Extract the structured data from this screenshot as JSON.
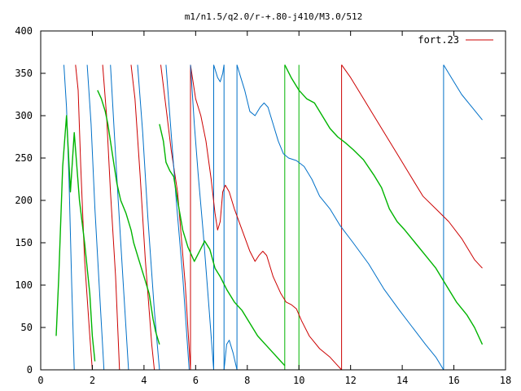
{
  "chart_data": {
    "type": "line",
    "title": "m1/n1.5/q2.0/r-+.80-j410/M3.0/512",
    "xlabel": "",
    "ylabel": "",
    "xlim": [
      0,
      18
    ],
    "ylim": [
      0,
      400
    ],
    "x_ticks": [
      0,
      2,
      4,
      6,
      8,
      10,
      12,
      14,
      16,
      18
    ],
    "y_ticks": [
      0,
      50,
      100,
      150,
      200,
      250,
      300,
      350,
      400
    ],
    "x_tick_labels": [
      "0",
      "2",
      "4",
      "6",
      "8",
      "10",
      "12",
      "14",
      "16",
      "18"
    ],
    "y_tick_labels": [
      "0",
      "50",
      "100",
      "150",
      "200",
      "250",
      "300",
      "350",
      "400"
    ],
    "legend_position": "top-right",
    "grid": false,
    "series": [
      {
        "name": "fort.23",
        "color": "#cc0000",
        "segments": [
          [
            [
              1.35,
              360
            ],
            [
              1.45,
              330
            ],
            [
              1.55,
              240
            ],
            [
              1.7,
              130
            ],
            [
              1.9,
              40
            ],
            [
              2.0,
              0
            ]
          ],
          [
            [
              2.4,
              360
            ],
            [
              2.55,
              300
            ],
            [
              2.7,
              210
            ],
            [
              2.9,
              110
            ],
            [
              3.05,
              0
            ]
          ],
          [
            [
              3.5,
              360
            ],
            [
              3.65,
              320
            ],
            [
              3.85,
              230
            ],
            [
              4.05,
              130
            ],
            [
              4.3,
              30
            ],
            [
              4.4,
              0
            ]
          ],
          [
            [
              4.65,
              360
            ],
            [
              4.85,
              310
            ],
            [
              5.05,
              260
            ],
            [
              5.3,
              210
            ],
            [
              5.6,
              100
            ],
            [
              5.8,
              0
            ]
          ],
          [
            [
              5.8,
              360
            ],
            [
              6.0,
              320
            ],
            [
              6.2,
              300
            ],
            [
              6.4,
              270
            ],
            [
              6.6,
              225
            ],
            [
              6.75,
              185
            ],
            [
              6.85,
              165
            ],
            [
              6.95,
              175
            ],
            [
              7.05,
              210
            ],
            [
              7.15,
              218
            ],
            [
              7.3,
              210
            ],
            [
              7.5,
              190
            ],
            [
              7.8,
              165
            ],
            [
              8.1,
              140
            ],
            [
              8.3,
              128
            ],
            [
              8.45,
              135
            ],
            [
              8.6,
              140
            ],
            [
              8.75,
              135
            ],
            [
              9.0,
              110
            ],
            [
              9.3,
              90
            ],
            [
              9.5,
              80
            ],
            [
              9.7,
              77
            ],
            [
              9.9,
              72
            ],
            [
              10.1,
              58
            ],
            [
              10.4,
              40
            ],
            [
              10.8,
              25
            ],
            [
              11.2,
              15
            ],
            [
              11.5,
              5
            ],
            [
              11.65,
              0
            ]
          ],
          [
            [
              11.65,
              360
            ],
            [
              12.0,
              345
            ],
            [
              12.4,
              325
            ],
            [
              12.9,
              300
            ],
            [
              13.4,
              275
            ],
            [
              13.8,
              255
            ],
            [
              14.3,
              230
            ],
            [
              14.8,
              205
            ],
            [
              15.3,
              190
            ],
            [
              15.8,
              175
            ],
            [
              16.3,
              155
            ],
            [
              16.8,
              130
            ],
            [
              17.1,
              120
            ]
          ]
        ]
      },
      {
        "name": "",
        "color": "#0070c8",
        "segments": [
          [
            [
              0.9,
              360
            ],
            [
              1.0,
              310
            ],
            [
              1.1,
              220
            ],
            [
              1.2,
              100
            ],
            [
              1.3,
              0
            ]
          ],
          [
            [
              1.8,
              360
            ],
            [
              1.95,
              290
            ],
            [
              2.1,
              190
            ],
            [
              2.3,
              80
            ],
            [
              2.45,
              0
            ]
          ],
          [
            [
              2.7,
              360
            ],
            [
              2.85,
              280
            ],
            [
              3.0,
              200
            ],
            [
              3.2,
              100
            ],
            [
              3.4,
              0
            ]
          ],
          [
            [
              3.75,
              360
            ],
            [
              3.95,
              280
            ],
            [
              4.15,
              180
            ],
            [
              4.4,
              70
            ],
            [
              4.6,
              0
            ]
          ],
          [
            [
              4.85,
              360
            ],
            [
              5.05,
              280
            ],
            [
              5.25,
              200
            ],
            [
              5.5,
              110
            ],
            [
              5.75,
              0
            ]
          ],
          [
            [
              5.8,
              360
            ],
            [
              5.95,
              290
            ],
            [
              6.1,
              230
            ],
            [
              6.3,
              160
            ],
            [
              6.5,
              80
            ],
            [
              6.7,
              0
            ]
          ],
          [
            [
              6.7,
              360
            ],
            [
              6.85,
              345
            ],
            [
              6.95,
              340
            ],
            [
              7.05,
              350
            ],
            [
              7.1,
              360
            ]
          ],
          [
            [
              7.1,
              0
            ],
            [
              7.2,
              30
            ],
            [
              7.3,
              35
            ],
            [
              7.45,
              20
            ],
            [
              7.6,
              0
            ]
          ],
          [
            [
              7.6,
              360
            ],
            [
              7.75,
              345
            ],
            [
              7.9,
              330
            ],
            [
              8.1,
              305
            ],
            [
              8.3,
              300
            ],
            [
              8.5,
              310
            ],
            [
              8.65,
              315
            ],
            [
              8.8,
              310
            ],
            [
              9.0,
              290
            ],
            [
              9.2,
              270
            ],
            [
              9.4,
              255
            ],
            [
              9.6,
              250
            ],
            [
              9.9,
              247
            ],
            [
              10.2,
              240
            ],
            [
              10.5,
              225
            ],
            [
              10.8,
              205
            ],
            [
              11.2,
              190
            ],
            [
              11.6,
              170
            ],
            [
              12.1,
              150
            ],
            [
              12.7,
              125
            ],
            [
              13.3,
              95
            ],
            [
              13.9,
              70
            ],
            [
              14.4,
              50
            ],
            [
              14.9,
              30
            ],
            [
              15.3,
              15
            ],
            [
              15.6,
              0
            ]
          ],
          [
            [
              15.6,
              360
            ],
            [
              15.9,
              345
            ],
            [
              16.3,
              325
            ],
            [
              16.7,
              310
            ],
            [
              17.1,
              295
            ]
          ]
        ]
      },
      {
        "name": "",
        "color": "#00b400",
        "segments": [
          [
            [
              0.6,
              40
            ],
            [
              0.7,
              110
            ],
            [
              0.85,
              240
            ],
            [
              1.0,
              300
            ],
            [
              1.15,
              210
            ],
            [
              1.3,
              280
            ],
            [
              1.5,
              200
            ],
            [
              1.7,
              150
            ],
            [
              1.9,
              90
            ],
            [
              2.0,
              40
            ],
            [
              2.1,
              10
            ]
          ],
          [
            [
              2.2,
              330
            ],
            [
              2.35,
              320
            ],
            [
              2.5,
              305
            ],
            [
              2.6,
              290
            ],
            [
              2.8,
              250
            ],
            [
              2.95,
              220
            ],
            [
              3.1,
              200
            ],
            [
              3.3,
              185
            ],
            [
              3.5,
              165
            ],
            [
              3.6,
              150
            ],
            [
              3.8,
              130
            ],
            [
              4.0,
              110
            ],
            [
              4.2,
              90
            ],
            [
              4.35,
              60
            ],
            [
              4.45,
              45
            ],
            [
              4.6,
              30
            ]
          ],
          [
            [
              4.6,
              290
            ],
            [
              4.75,
              270
            ],
            [
              4.85,
              245
            ],
            [
              5.0,
              235
            ],
            [
              5.15,
              228
            ],
            [
              5.3,
              200
            ],
            [
              5.5,
              165
            ],
            [
              5.7,
              145
            ],
            [
              5.95,
              128
            ],
            [
              6.15,
              140
            ],
            [
              6.35,
              152
            ],
            [
              6.55,
              142
            ],
            [
              6.75,
              120
            ],
            [
              6.95,
              110
            ],
            [
              7.2,
              95
            ],
            [
              7.5,
              80
            ],
            [
              7.8,
              70
            ],
            [
              8.1,
              55
            ],
            [
              8.4,
              40
            ],
            [
              8.7,
              30
            ],
            [
              9.0,
              20
            ],
            [
              9.3,
              10
            ],
            [
              9.45,
              5
            ]
          ],
          [
            [
              9.45,
              360
            ],
            [
              9.7,
              345
            ],
            [
              10.0,
              330
            ],
            [
              10.3,
              320
            ],
            [
              10.6,
              315
            ],
            [
              10.9,
              300
            ],
            [
              11.2,
              285
            ],
            [
              11.5,
              275
            ],
            [
              11.8,
              268
            ],
            [
              12.1,
              260
            ],
            [
              12.5,
              248
            ],
            [
              12.9,
              230
            ],
            [
              13.2,
              215
            ],
            [
              13.5,
              190
            ],
            [
              13.8,
              175
            ],
            [
              14.1,
              165
            ],
            [
              14.5,
              150
            ],
            [
              14.9,
              135
            ],
            [
              15.3,
              120
            ],
            [
              15.7,
              100
            ],
            [
              16.1,
              80
            ],
            [
              16.5,
              65
            ],
            [
              16.8,
              50
            ],
            [
              17.1,
              30
            ]
          ]
        ]
      }
    ],
    "verticals": [
      {
        "x": 5.8,
        "color": "#cc0000"
      },
      {
        "x": 6.7,
        "color": "#0070c8"
      },
      {
        "x": 7.1,
        "color": "#0070c8"
      },
      {
        "x": 7.6,
        "color": "#0070c8"
      },
      {
        "x": 9.45,
        "color": "#00b400"
      },
      {
        "x": 10.0,
        "color": "#00b400"
      },
      {
        "x": 11.65,
        "color": "#cc0000"
      },
      {
        "x": 15.6,
        "color": "#0070c8"
      }
    ]
  }
}
